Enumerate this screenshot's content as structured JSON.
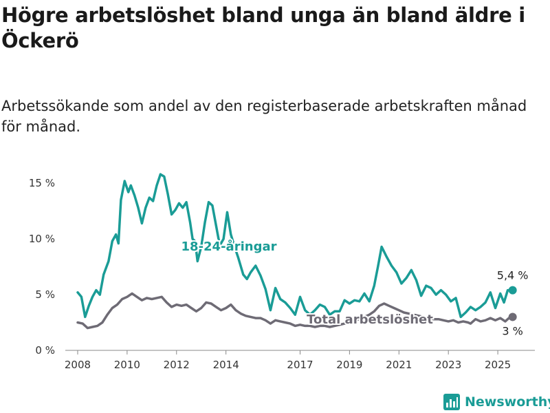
{
  "header": {
    "title": "Högre arbetslöshet bland unga än bland äldre i Öckerö",
    "subtitle": "Arbetssökande som andel av den registerbaserade arbetskraften månad för månad."
  },
  "logo": {
    "text": "Newsworthy",
    "icon": "bar-chart-logo-icon"
  },
  "chart_data": {
    "type": "line",
    "title": "Högre arbetslöshet bland unga än bland äldre i Öckerö",
    "xlabel": "",
    "ylabel": "",
    "x_range": [
      2007.5,
      2026.5
    ],
    "ylim": [
      0,
      16
    ],
    "y_ticks": [
      {
        "value": 0,
        "label": "0 %"
      },
      {
        "value": 5,
        "label": "5 %"
      },
      {
        "value": 10,
        "label": "10 %"
      },
      {
        "value": 15,
        "label": "15 %"
      }
    ],
    "x_ticks": [
      {
        "value": 2008,
        "label": "2008"
      },
      {
        "value": 2010,
        "label": "2010"
      },
      {
        "value": 2012,
        "label": "2012"
      },
      {
        "value": 2014,
        "label": "2014"
      },
      {
        "value": 2017,
        "label": "2017"
      },
      {
        "value": 2019,
        "label": "2019"
      },
      {
        "value": 2021,
        "label": "2021"
      },
      {
        "value": 2023,
        "label": "2023"
      },
      {
        "value": 2025,
        "label": "2025"
      }
    ],
    "grid": false,
    "colors": {
      "youth": "#1a9c96",
      "total": "#6e6b75",
      "axis": "#888888"
    },
    "series": [
      {
        "name": "18-24-åringar",
        "end_label": "5,4 %",
        "points": [
          [
            2008.0,
            5.2
          ],
          [
            2008.15,
            4.8
          ],
          [
            2008.3,
            3.0
          ],
          [
            2008.45,
            4.0
          ],
          [
            2008.6,
            4.8
          ],
          [
            2008.75,
            5.4
          ],
          [
            2008.9,
            5.0
          ],
          [
            2009.05,
            6.8
          ],
          [
            2009.25,
            8.0
          ],
          [
            2009.4,
            9.8
          ],
          [
            2009.55,
            10.4
          ],
          [
            2009.65,
            9.6
          ],
          [
            2009.75,
            13.5
          ],
          [
            2009.9,
            15.2
          ],
          [
            2010.05,
            14.2
          ],
          [
            2010.15,
            14.8
          ],
          [
            2010.3,
            13.9
          ],
          [
            2010.45,
            12.8
          ],
          [
            2010.6,
            11.4
          ],
          [
            2010.75,
            12.8
          ],
          [
            2010.9,
            13.7
          ],
          [
            2011.05,
            13.4
          ],
          [
            2011.2,
            14.8
          ],
          [
            2011.35,
            15.8
          ],
          [
            2011.5,
            15.6
          ],
          [
            2011.65,
            14.0
          ],
          [
            2011.8,
            12.2
          ],
          [
            2011.95,
            12.6
          ],
          [
            2012.1,
            13.2
          ],
          [
            2012.25,
            12.8
          ],
          [
            2012.4,
            13.3
          ],
          [
            2012.55,
            11.5
          ],
          [
            2012.65,
            10.0
          ],
          [
            2012.75,
            9.8
          ],
          [
            2012.85,
            8.0
          ],
          [
            2013.0,
            9.3
          ],
          [
            2013.15,
            11.5
          ],
          [
            2013.3,
            13.3
          ],
          [
            2013.45,
            13.0
          ],
          [
            2013.6,
            11.2
          ],
          [
            2013.75,
            9.4
          ],
          [
            2013.9,
            10.0
          ],
          [
            2014.05,
            12.4
          ],
          [
            2014.2,
            10.4
          ],
          [
            2014.35,
            9.3
          ],
          [
            2014.5,
            8.3
          ],
          [
            2014.7,
            6.8
          ],
          [
            2014.85,
            6.4
          ],
          [
            2015.0,
            7.0
          ],
          [
            2015.2,
            7.6
          ],
          [
            2015.4,
            6.7
          ],
          [
            2015.6,
            5.5
          ],
          [
            2015.8,
            3.6
          ],
          [
            2016.0,
            5.6
          ],
          [
            2016.2,
            4.6
          ],
          [
            2016.4,
            4.3
          ],
          [
            2016.6,
            3.8
          ],
          [
            2016.8,
            3.2
          ],
          [
            2017.0,
            4.8
          ],
          [
            2017.2,
            3.6
          ],
          [
            2017.4,
            3.2
          ],
          [
            2017.6,
            3.6
          ],
          [
            2017.8,
            4.1
          ],
          [
            2018.0,
            3.9
          ],
          [
            2018.2,
            3.2
          ],
          [
            2018.4,
            3.5
          ],
          [
            2018.6,
            3.5
          ],
          [
            2018.8,
            4.5
          ],
          [
            2019.0,
            4.2
          ],
          [
            2019.2,
            4.5
          ],
          [
            2019.4,
            4.4
          ],
          [
            2019.6,
            5.1
          ],
          [
            2019.8,
            4.4
          ],
          [
            2020.0,
            5.8
          ],
          [
            2020.15,
            7.5
          ],
          [
            2020.3,
            9.3
          ],
          [
            2020.5,
            8.4
          ],
          [
            2020.7,
            7.6
          ],
          [
            2020.9,
            7.0
          ],
          [
            2021.1,
            6.0
          ],
          [
            2021.3,
            6.5
          ],
          [
            2021.5,
            7.2
          ],
          [
            2021.7,
            6.3
          ],
          [
            2021.9,
            4.9
          ],
          [
            2022.1,
            5.8
          ],
          [
            2022.3,
            5.6
          ],
          [
            2022.5,
            5.0
          ],
          [
            2022.7,
            5.4
          ],
          [
            2022.9,
            5.0
          ],
          [
            2023.1,
            4.4
          ],
          [
            2023.3,
            4.7
          ],
          [
            2023.5,
            3.0
          ],
          [
            2023.7,
            3.4
          ],
          [
            2023.9,
            3.9
          ],
          [
            2024.1,
            3.6
          ],
          [
            2024.3,
            3.9
          ],
          [
            2024.5,
            4.3
          ],
          [
            2024.7,
            5.2
          ],
          [
            2024.9,
            3.8
          ],
          [
            2025.1,
            5.1
          ],
          [
            2025.25,
            4.3
          ],
          [
            2025.4,
            5.4
          ],
          [
            2025.6,
            5.4
          ]
        ]
      },
      {
        "name": "Total arbetslöshet",
        "end_label": "3 %",
        "points": [
          [
            2008.0,
            2.5
          ],
          [
            2008.2,
            2.4
          ],
          [
            2008.4,
            2.0
          ],
          [
            2008.6,
            2.1
          ],
          [
            2008.8,
            2.2
          ],
          [
            2009.0,
            2.5
          ],
          [
            2009.2,
            3.2
          ],
          [
            2009.4,
            3.8
          ],
          [
            2009.6,
            4.1
          ],
          [
            2009.8,
            4.6
          ],
          [
            2010.0,
            4.8
          ],
          [
            2010.2,
            5.1
          ],
          [
            2010.4,
            4.8
          ],
          [
            2010.6,
            4.5
          ],
          [
            2010.8,
            4.7
          ],
          [
            2011.0,
            4.6
          ],
          [
            2011.2,
            4.7
          ],
          [
            2011.4,
            4.8
          ],
          [
            2011.6,
            4.3
          ],
          [
            2011.8,
            3.9
          ],
          [
            2012.0,
            4.1
          ],
          [
            2012.2,
            4.0
          ],
          [
            2012.4,
            4.1
          ],
          [
            2012.6,
            3.8
          ],
          [
            2012.8,
            3.5
          ],
          [
            2013.0,
            3.8
          ],
          [
            2013.2,
            4.3
          ],
          [
            2013.4,
            4.2
          ],
          [
            2013.6,
            3.9
          ],
          [
            2013.8,
            3.6
          ],
          [
            2014.0,
            3.8
          ],
          [
            2014.2,
            4.1
          ],
          [
            2014.4,
            3.6
          ],
          [
            2014.6,
            3.3
          ],
          [
            2014.8,
            3.1
          ],
          [
            2015.0,
            3.0
          ],
          [
            2015.2,
            2.9
          ],
          [
            2015.4,
            2.9
          ],
          [
            2015.6,
            2.7
          ],
          [
            2015.8,
            2.4
          ],
          [
            2016.0,
            2.7
          ],
          [
            2016.2,
            2.6
          ],
          [
            2016.4,
            2.5
          ],
          [
            2016.6,
            2.4
          ],
          [
            2016.8,
            2.2
          ],
          [
            2017.0,
            2.3
          ],
          [
            2017.2,
            2.2
          ],
          [
            2017.4,
            2.2
          ],
          [
            2017.6,
            2.1
          ],
          [
            2017.8,
            2.2
          ],
          [
            2018.0,
            2.2
          ],
          [
            2018.2,
            2.1
          ],
          [
            2018.4,
            2.2
          ],
          [
            2018.6,
            2.3
          ],
          [
            2018.8,
            2.4
          ],
          [
            2019.0,
            2.6
          ],
          [
            2019.2,
            2.7
          ],
          [
            2019.4,
            2.8
          ],
          [
            2019.6,
            3.0
          ],
          [
            2019.8,
            3.2
          ],
          [
            2020.0,
            3.5
          ],
          [
            2020.2,
            4.0
          ],
          [
            2020.4,
            4.2
          ],
          [
            2020.6,
            4.0
          ],
          [
            2020.8,
            3.8
          ],
          [
            2021.0,
            3.6
          ],
          [
            2021.2,
            3.4
          ],
          [
            2021.4,
            3.3
          ],
          [
            2021.6,
            3.2
          ],
          [
            2021.8,
            3.1
          ],
          [
            2022.0,
            3.0
          ],
          [
            2022.2,
            2.9
          ],
          [
            2022.4,
            2.8
          ],
          [
            2022.6,
            2.8
          ],
          [
            2022.8,
            2.7
          ],
          [
            2023.0,
            2.6
          ],
          [
            2023.2,
            2.7
          ],
          [
            2023.4,
            2.5
          ],
          [
            2023.6,
            2.6
          ],
          [
            2023.8,
            2.5
          ],
          [
            2023.9,
            2.4
          ],
          [
            2024.1,
            2.8
          ],
          [
            2024.3,
            2.6
          ],
          [
            2024.5,
            2.7
          ],
          [
            2024.7,
            2.9
          ],
          [
            2024.9,
            2.7
          ],
          [
            2025.1,
            2.9
          ],
          [
            2025.3,
            2.6
          ],
          [
            2025.45,
            2.9
          ],
          [
            2025.6,
            3.0
          ]
        ]
      }
    ],
    "annotations": [
      {
        "text": "18-24-åringar",
        "series": 0
      },
      {
        "text": "Total arbetslöshet",
        "series": 1
      }
    ]
  }
}
